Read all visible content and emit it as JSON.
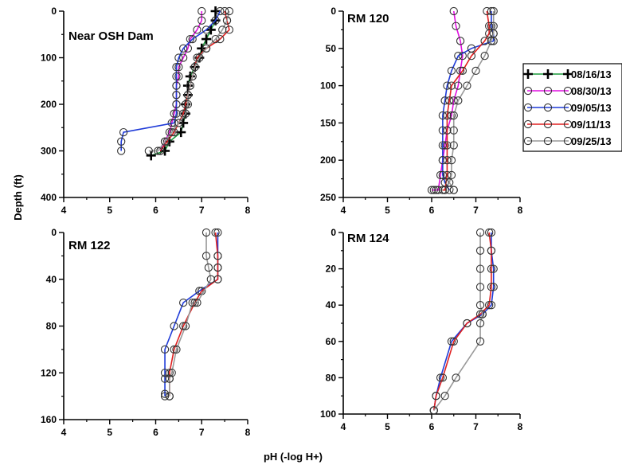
{
  "figure": {
    "xlabel": "pH (-log H+)",
    "ylabel": "Depth (ft)"
  },
  "legend": {
    "placement": "right",
    "entries": [
      {
        "label": "08/16/13",
        "color": "#000000",
        "line_color": "#1a9a3a",
        "marker": "plus"
      },
      {
        "label": "08/30/13",
        "color": "#e010e0",
        "marker": "circle"
      },
      {
        "label": "09/05/13",
        "color": "#1f3bd8",
        "marker": "circle"
      },
      {
        "label": "09/11/13",
        "color": "#e02020",
        "marker": "circle"
      },
      {
        "label": "09/25/13",
        "color": "#999999",
        "marker": "circle"
      }
    ]
  },
  "chart_data": [
    {
      "type": "line",
      "title": "Near OSH Dam",
      "xlim": [
        4,
        8
      ],
      "ylim": [
        0,
        400
      ],
      "y_inverted": true,
      "xticks": [
        4,
        5,
        6,
        7,
        8
      ],
      "yticks": [
        0,
        100,
        200,
        300,
        400
      ],
      "series": [
        {
          "name": "08/16/13",
          "x": [
            7.3,
            7.3,
            7.2,
            7.1,
            7.0,
            6.95,
            6.85,
            6.75,
            6.7,
            6.7,
            6.65,
            6.65,
            6.6,
            6.55,
            6.3,
            6.2,
            5.9
          ],
          "y": [
            0,
            20,
            40,
            60,
            80,
            100,
            120,
            140,
            160,
            180,
            200,
            220,
            240,
            260,
            280,
            300,
            310
          ]
        },
        {
          "name": "08/30/13",
          "x": [
            7.0,
            7.0,
            6.9,
            6.75,
            6.7,
            6.6,
            6.5,
            6.5,
            6.45,
            6.45,
            6.45,
            6.4,
            6.35,
            6.3,
            6.2,
            6.1
          ],
          "y": [
            0,
            20,
            40,
            60,
            80,
            100,
            120,
            140,
            160,
            180,
            200,
            220,
            240,
            260,
            280,
            300
          ]
        },
        {
          "name": "09/05/13",
          "x": [
            7.4,
            7.3,
            7.1,
            6.8,
            6.6,
            6.5,
            6.45,
            6.45,
            6.45,
            6.45,
            6.45,
            6.45,
            6.4,
            5.3,
            5.25,
            5.25
          ],
          "y": [
            0,
            20,
            40,
            60,
            80,
            100,
            120,
            140,
            160,
            180,
            200,
            220,
            240,
            260,
            280,
            300
          ]
        },
        {
          "name": "09/11/13",
          "x": [
            7.5,
            7.55,
            7.6,
            7.4,
            7.1,
            6.9,
            6.85,
            6.8,
            6.75,
            6.7,
            6.65,
            6.6,
            6.5,
            6.4,
            6.25,
            6.1
          ],
          "y": [
            0,
            20,
            40,
            60,
            80,
            100,
            120,
            140,
            160,
            180,
            200,
            220,
            240,
            260,
            280,
            300
          ]
        },
        {
          "name": "09/25/13",
          "x": [
            7.6,
            7.55,
            7.45,
            7.3,
            7.1,
            6.95,
            6.85,
            6.8,
            6.75,
            6.7,
            6.7,
            6.65,
            6.5,
            6.35,
            6.2,
            6.05,
            5.85
          ],
          "y": [
            0,
            20,
            40,
            60,
            80,
            100,
            120,
            140,
            160,
            180,
            200,
            220,
            240,
            260,
            280,
            300,
            300
          ]
        }
      ]
    },
    {
      "type": "line",
      "title": "RM 120",
      "xlim": [
        4,
        8
      ],
      "ylim": [
        0,
        250
      ],
      "y_inverted": true,
      "xticks": [
        4,
        5,
        6,
        7,
        8
      ],
      "yticks": [
        0,
        50,
        100,
        150,
        200,
        250
      ],
      "series": [
        {
          "name": "08/30/13",
          "x": [
            6.5,
            6.55,
            6.65,
            6.7,
            6.65,
            6.6,
            6.5,
            6.45,
            6.35,
            6.3,
            6.25,
            6.2,
            6.15,
            6.1,
            6.05,
            6.0
          ],
          "y": [
            0,
            20,
            40,
            60,
            80,
            100,
            120,
            140,
            160,
            180,
            200,
            220,
            240,
            240,
            240,
            240
          ]
        },
        {
          "name": "09/05/13",
          "x": [
            7.35,
            7.35,
            7.4,
            7.4,
            6.9,
            6.6,
            6.45,
            6.35,
            6.3,
            6.25,
            6.25,
            6.25,
            6.25,
            6.25,
            6.3,
            6.4
          ],
          "y": [
            0,
            20,
            30,
            40,
            50,
            60,
            80,
            100,
            120,
            140,
            160,
            180,
            200,
            220,
            230,
            240
          ]
        },
        {
          "name": "09/11/13",
          "x": [
            7.25,
            7.3,
            7.3,
            7.2,
            6.9,
            6.7,
            6.45,
            6.4,
            6.35,
            6.35,
            6.35,
            6.35,
            6.35,
            6.3,
            6.3,
            6.25
          ],
          "y": [
            0,
            20,
            30,
            40,
            60,
            80,
            100,
            120,
            140,
            160,
            180,
            200,
            220,
            240,
            240,
            240
          ]
        },
        {
          "name": "09/25/13",
          "x": [
            7.4,
            7.4,
            7.4,
            7.35,
            7.2,
            7.0,
            6.8,
            6.6,
            6.5,
            6.5,
            6.5,
            6.45,
            6.45,
            6.4,
            6.5,
            6.5
          ],
          "y": [
            0,
            20,
            30,
            40,
            60,
            80,
            100,
            120,
            140,
            160,
            180,
            200,
            220,
            230,
            240,
            240
          ]
        }
      ]
    },
    {
      "type": "line",
      "title": "RM 122",
      "xlim": [
        4,
        8
      ],
      "ylim": [
        0,
        160
      ],
      "y_inverted": true,
      "xticks": [
        4,
        5,
        6,
        7,
        8
      ],
      "yticks": [
        0,
        40,
        80,
        120,
        160
      ],
      "series": [
        {
          "name": "09/05/13",
          "x": [
            7.35,
            7.35,
            7.35,
            7.35,
            6.95,
            6.6,
            6.4,
            6.2,
            6.2,
            6.2,
            6.2,
            6.2
          ],
          "y": [
            0,
            20,
            30,
            40,
            50,
            60,
            80,
            100,
            120,
            125,
            138,
            140
          ]
        },
        {
          "name": "09/11/13",
          "x": [
            7.3,
            7.35,
            7.35,
            7.35,
            7.0,
            6.85,
            6.6,
            6.4,
            6.3,
            6.3,
            6.3
          ],
          "y": [
            0,
            20,
            30,
            40,
            50,
            60,
            80,
            100,
            120,
            125,
            140
          ]
        },
        {
          "name": "09/25/13",
          "x": [
            7.1,
            7.1,
            7.15,
            7.2,
            6.9,
            6.8,
            6.65,
            6.45,
            6.35,
            6.3,
            6.3
          ],
          "y": [
            0,
            20,
            30,
            40,
            60,
            60,
            80,
            100,
            120,
            125,
            140
          ]
        }
      ]
    },
    {
      "type": "line",
      "title": "RM 124",
      "xlim": [
        4,
        8
      ],
      "ylim": [
        0,
        100
      ],
      "y_inverted": true,
      "xticks": [
        4,
        5,
        6,
        7,
        8
      ],
      "yticks": [
        0,
        20,
        40,
        60,
        80,
        100
      ],
      "series": [
        {
          "name": "09/05/13",
          "x": [
            7.35,
            7.35,
            7.4,
            7.4,
            7.35,
            7.15,
            6.8,
            6.45,
            6.2,
            6.1,
            6.05
          ],
          "y": [
            0,
            10,
            20,
            30,
            40,
            45,
            50,
            60,
            80,
            90,
            98
          ]
        },
        {
          "name": "09/11/13",
          "x": [
            7.3,
            7.35,
            7.35,
            7.35,
            7.3,
            7.1,
            6.8,
            6.5,
            6.25,
            6.1,
            6.05
          ],
          "y": [
            0,
            10,
            20,
            30,
            40,
            45,
            50,
            60,
            80,
            90,
            98
          ]
        },
        {
          "name": "09/25/13",
          "x": [
            7.1,
            7.1,
            7.1,
            7.1,
            7.1,
            7.15,
            7.1,
            7.1,
            6.55,
            6.3,
            6.05
          ],
          "y": [
            0,
            10,
            20,
            30,
            40,
            45,
            50,
            60,
            80,
            90,
            98
          ]
        }
      ]
    }
  ]
}
